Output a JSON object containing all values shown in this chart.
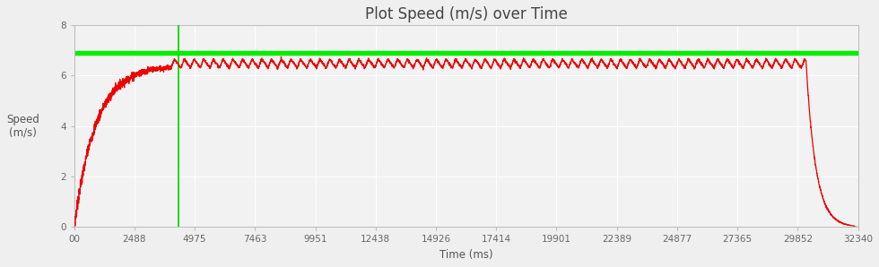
{
  "title": "Plot Speed (m/s) over Time",
  "xlabel": "Time (ms)",
  "ylabel": "Speed\n(m/s)",
  "xlim": [
    0,
    32340
  ],
  "ylim": [
    0,
    8
  ],
  "yticks": [
    0,
    2,
    4,
    6,
    8
  ],
  "xtick_labels": [
    "00",
    "2488",
    "4975",
    "7463",
    "9951",
    "12438",
    "14926",
    "17414",
    "19901",
    "22389",
    "24877",
    "27365",
    "29852",
    "32340"
  ],
  "xtick_values": [
    0,
    2488,
    4975,
    7463,
    9951,
    12438,
    14926,
    17414,
    19901,
    22389,
    24877,
    27365,
    29852,
    32340
  ],
  "top_speed_line_y": 6.88,
  "top_speed_line_color": "#00ee00",
  "vertical_line_x": 4300,
  "vertical_line_color": "#00dd00",
  "line_color": "#ee0000",
  "line_width": 0.9,
  "background_color": "#efefef",
  "plot_bg_color": "#f2f2f2",
  "grid_color": "#ffffff",
  "title_fontsize": 12,
  "axis_label_fontsize": 8.5,
  "tick_fontsize": 7.5,
  "accel_end": 4000,
  "steady_end": 30200,
  "decel_end": 32200,
  "osc_period": 400,
  "osc_low": 5.95,
  "osc_high": 6.65,
  "steady_mean": 6.3
}
